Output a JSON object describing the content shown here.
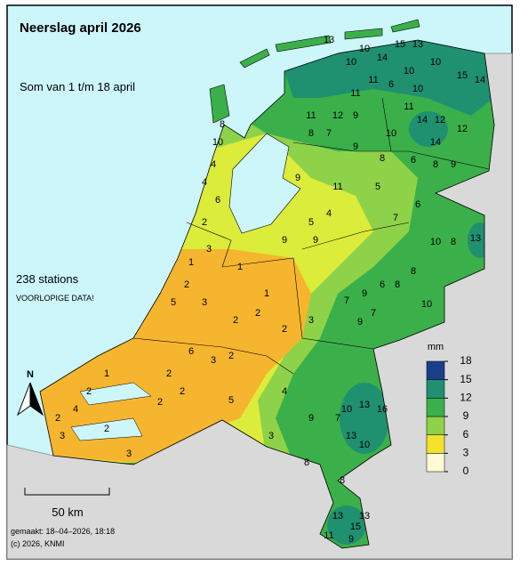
{
  "title": "Neerslag april 2026",
  "subtitle": "Som van 1 t/m 18 april",
  "station_count": "238 stations",
  "note": "VOORLOPIGE DATA!",
  "north": "N",
  "scale": "50 km",
  "footer": [
    "gemaakt: 18–04–2026, 18:18",
    "(c) 2026, KNMI"
  ],
  "legend": {
    "unit": "mm",
    "ylim": [
      0,
      18
    ],
    "ticks": [
      0,
      3,
      6,
      9,
      12,
      15,
      18
    ],
    "colors": [
      "#fffbd4",
      "#f2e22c",
      "#8ed24a",
      "#3bb04a",
      "#1f9070",
      "#1a3f8a"
    ]
  },
  "stations": [
    13,
    10,
    10,
    14,
    15,
    13,
    10,
    10,
    15,
    14,
    11,
    6,
    10,
    11,
    12,
    9,
    11,
    8,
    7,
    14,
    12,
    14,
    12,
    10,
    11,
    9,
    8,
    8,
    9,
    6,
    9,
    11,
    5,
    6,
    7,
    10,
    8,
    13,
    8,
    6,
    8,
    9,
    7,
    7,
    9,
    10,
    5,
    9,
    9,
    4,
    8,
    10,
    4,
    4,
    6,
    2,
    3,
    1,
    2,
    5,
    3,
    1,
    1,
    2,
    2,
    3,
    2,
    2,
    3,
    6,
    2,
    2,
    2,
    1,
    2,
    4,
    2,
    3,
    2,
    3,
    5,
    3,
    4,
    9,
    7,
    10,
    13,
    16,
    13,
    10,
    8,
    8,
    13,
    15,
    13,
    11,
    9
  ]
}
